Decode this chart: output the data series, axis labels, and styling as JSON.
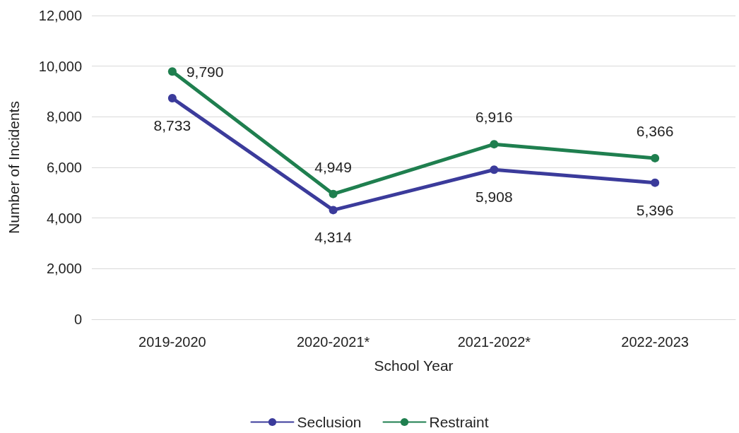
{
  "chart_data": {
    "type": "line",
    "xlabel": "School Year",
    "ylabel": "Number of Incidents",
    "categories": [
      "2019-2020",
      "2020-2021*",
      "2021-2022*",
      "2022-2023"
    ],
    "series": [
      {
        "name": "Seclusion",
        "color": "#3b3b9b",
        "values": [
          8733,
          4314,
          5908,
          5396
        ],
        "value_labels": [
          "8,733",
          "4,314",
          "5,908",
          "5,396"
        ]
      },
      {
        "name": "Restraint",
        "color": "#1f7f4f",
        "values": [
          9790,
          4949,
          6916,
          6366
        ],
        "value_labels": [
          "9,790",
          "4,949",
          "6,916",
          "6,366"
        ]
      }
    ],
    "ylim": [
      0,
      12000
    ],
    "yticks": [
      0,
      {
        "value": 2000,
        "label": "2,000"
      },
      {
        "value": 4000,
        "label": "4,000"
      },
      {
        "value": 6000,
        "label": "6,000"
      },
      {
        "value": 8000,
        "label": "8,000"
      },
      {
        "value": 10000,
        "label": "10,000"
      },
      {
        "value": 12000,
        "label": "12,000"
      }
    ],
    "grid": "y",
    "legend": "bottom",
    "marker": "circle",
    "line_style": "solid"
  }
}
